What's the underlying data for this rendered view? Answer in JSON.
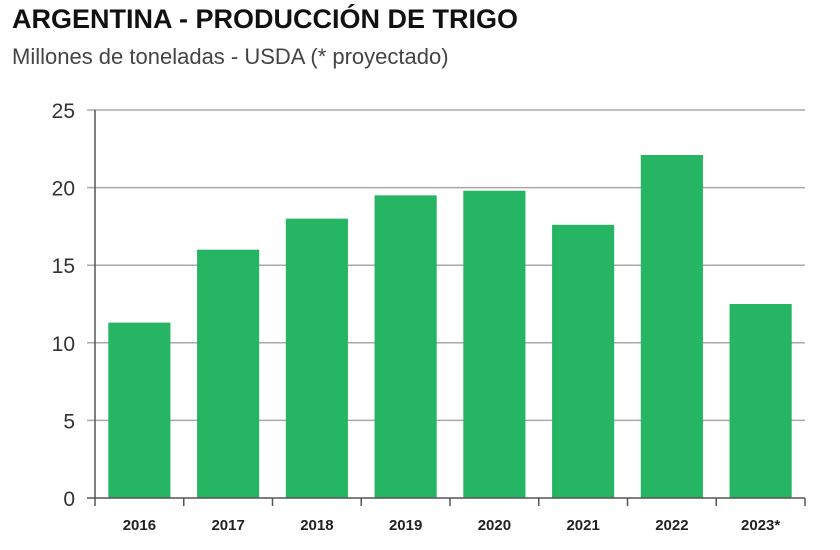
{
  "title": "ARGENTINA - PRODUCCIÓN DE TRIGO",
  "subtitle": "Millones de toneladas - USDA (* proyectado)",
  "colors": {
    "bar": "#25b563",
    "grid": "#a9a9a9",
    "axis": "#555555"
  },
  "chart_data": {
    "type": "bar",
    "title": "ARGENTINA - PRODUCCIÓN DE TRIGO",
    "subtitle": "Millones de toneladas - USDA (* proyectado)",
    "categories": [
      "2016",
      "2017",
      "2018",
      "2019",
      "2020",
      "2021",
      "2022",
      "2023*"
    ],
    "values": [
      11.3,
      16.0,
      18.0,
      19.5,
      19.8,
      17.6,
      22.1,
      12.5
    ],
    "ylim": [
      0,
      25
    ],
    "yticks": [
      0,
      5,
      10,
      15,
      20,
      25
    ],
    "grid": true,
    "legend": "none"
  }
}
